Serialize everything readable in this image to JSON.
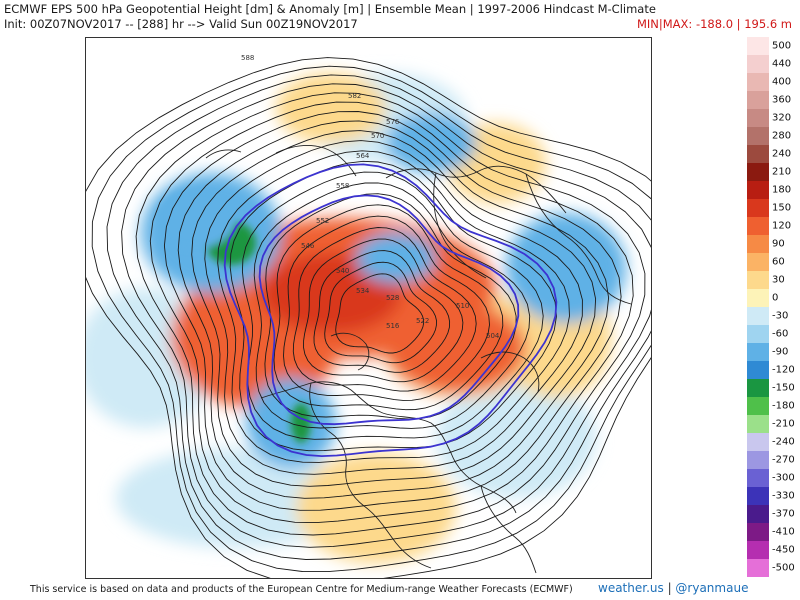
{
  "header": {
    "title": "ECMWF EPS 500 hPa Geopotential Height [dm] & Anomaly [m] | Ensemble Mean | 1997-2006 Hindcast M-Climate",
    "init": "Init: 00Z07NOV2017 -- [288] hr --> Valid Sun 00Z19NOV2017",
    "minmax": "MIN|MAX: -188.0 | 195.6 m"
  },
  "colorbar": {
    "levels": [
      {
        "label": "500",
        "color": "#fde6e6"
      },
      {
        "label": "440",
        "color": "#f4cfcf"
      },
      {
        "label": "400",
        "color": "#e9b8b3"
      },
      {
        "label": "360",
        "color": "#d9a19b"
      },
      {
        "label": "320",
        "color": "#c78a84"
      },
      {
        "label": "280",
        "color": "#b3726a"
      },
      {
        "label": "240",
        "color": "#9c4a3e"
      },
      {
        "label": "210",
        "color": "#8b1a10"
      },
      {
        "label": "180",
        "color": "#b81e12"
      },
      {
        "label": "150",
        "color": "#d9381d"
      },
      {
        "label": "120",
        "color": "#ef6030"
      },
      {
        "label": "90",
        "color": "#f68a45"
      },
      {
        "label": "60",
        "color": "#fbb365"
      },
      {
        "label": "30",
        "color": "#fdd98c"
      },
      {
        "label": "0",
        "color": "#fdf3b8"
      },
      {
        "label": "-30",
        "color": "#cfeaf6"
      },
      {
        "label": "-60",
        "color": "#9fd4f0"
      },
      {
        "label": "-90",
        "color": "#5fb1e6"
      },
      {
        "label": "-120",
        "color": "#2f8ad4"
      },
      {
        "label": "-150",
        "color": "#1a9641"
      },
      {
        "label": "-180",
        "color": "#4fc04a"
      },
      {
        "label": "-210",
        "color": "#9be08a"
      },
      {
        "label": "-240",
        "color": "#c9c7ee"
      },
      {
        "label": "-270",
        "color": "#9c97e2"
      },
      {
        "label": "-300",
        "color": "#6a61d3"
      },
      {
        "label": "-330",
        "color": "#3c33b8"
      },
      {
        "label": "-370",
        "color": "#4a1b8c"
      },
      {
        "label": "-410",
        "color": "#7d1a86"
      },
      {
        "label": "-450",
        "color": "#b52eb0"
      },
      {
        "label": "-500",
        "color": "#e56fd8"
      }
    ]
  },
  "map": {
    "contour_labels": [
      "588",
      "582",
      "576",
      "570",
      "564",
      "558",
      "552",
      "546",
      "540",
      "534",
      "528",
      "522",
      "516",
      "510",
      "504"
    ],
    "colors": {
      "positive": "#ef6030",
      "strong_positive": "#d9381d",
      "weak_positive": "#fdd98c",
      "negative": "#5fb1e6",
      "weak_negative": "#cfeaf6",
      "strong_negative": "#1a9641",
      "contour": "#1a1a1a",
      "special_contour": "#3c33d0",
      "coast": "#222222"
    }
  },
  "footer": {
    "disclaimer": "This service is based on data and products of the European Centre for Medium-range Weather Forecasts (ECMWF)",
    "brand_site": "weather.us",
    "brand_sep": " | ",
    "brand_handle": "@ryanmaue"
  }
}
